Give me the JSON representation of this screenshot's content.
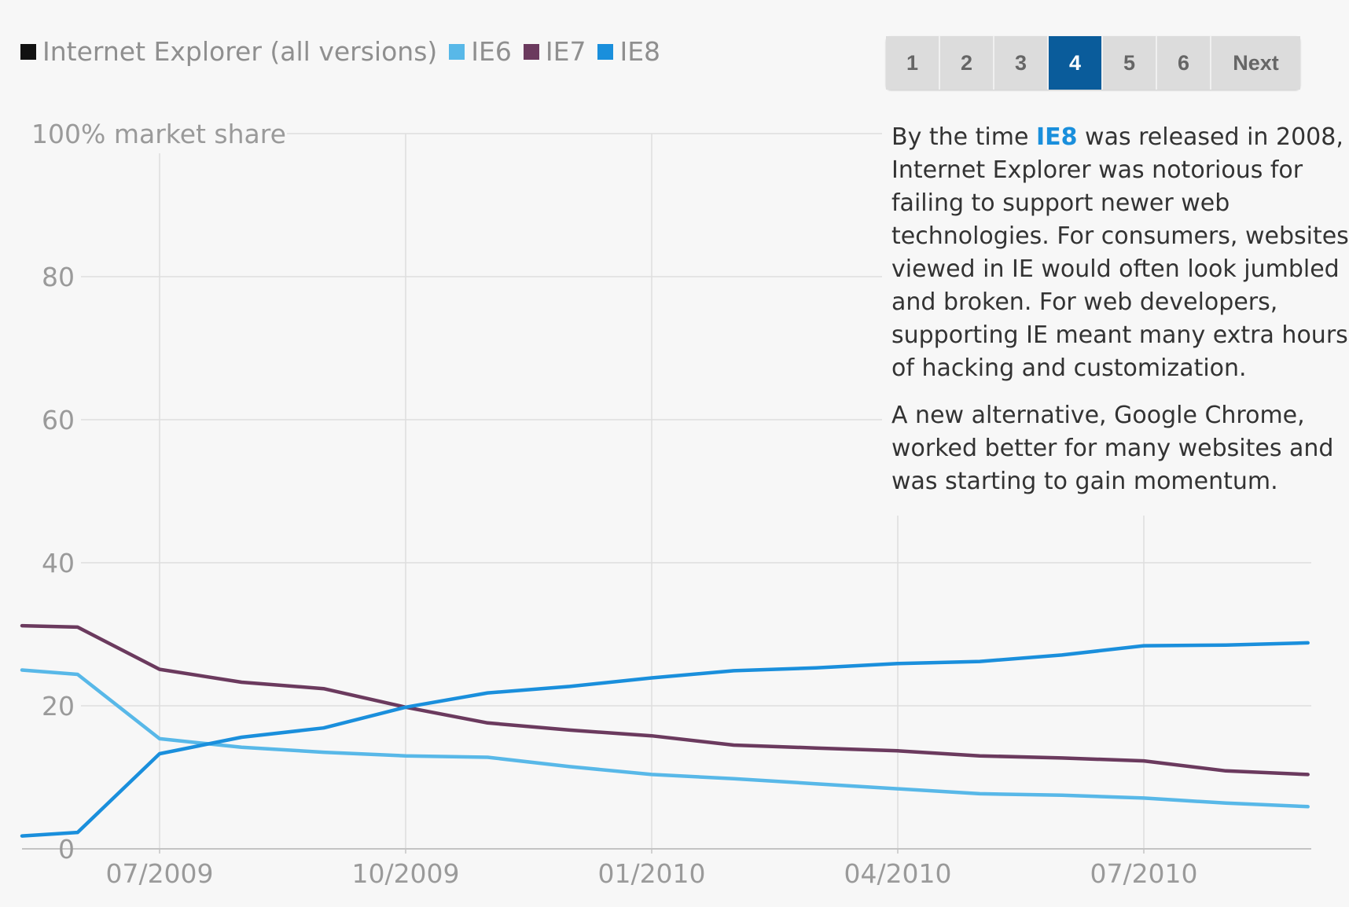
{
  "legend": {
    "items": [
      {
        "label": "Internet Explorer (all versions)",
        "color": "#111111"
      },
      {
        "label": "IE6",
        "color": "#58b8e8"
      },
      {
        "label": "IE7",
        "color": "#6b3a5e"
      },
      {
        "label": "IE8",
        "color": "#1a8fdc"
      }
    ]
  },
  "pager": {
    "pages": [
      "1",
      "2",
      "3",
      "4",
      "5",
      "6"
    ],
    "active": "4",
    "next_label": "Next"
  },
  "annotation": {
    "p1_before": "By the time ",
    "p1_highlight": "IE8",
    "p1_after_lines": [
      " was released in 2008,",
      "Internet Explorer was notorious for",
      "failing to support newer web",
      "technologies. For consumers, websites",
      "viewed in IE would often look jumbled",
      "and broken. For web developers,",
      "supporting IE meant many extra hours",
      "of hacking and customization."
    ],
    "p2_lines": [
      "A new alternative, Google Chrome,",
      "worked better for many websites and",
      "was starting to gain momentum."
    ]
  },
  "chart_data": {
    "type": "line",
    "ylabel_top": "100% market share",
    "ylim": [
      0,
      100
    ],
    "yticks": [
      0,
      20,
      40,
      60,
      80,
      100
    ],
    "ytick_labels": [
      "0",
      "20",
      "40",
      "60",
      "80",
      "100% market share"
    ],
    "x": [
      "2009-04",
      "2009-06",
      "2009-07",
      "2009-08",
      "2009-09",
      "2009-10",
      "2009-11",
      "2009-12",
      "2010-01",
      "2010-02",
      "2010-03",
      "2010-04",
      "2010-05",
      "2010-06",
      "2010-07",
      "2010-08",
      "2010-09"
    ],
    "xticks": [
      "2009-07",
      "2009-10",
      "2010-01",
      "2010-04",
      "2010-07"
    ],
    "xtick_labels": [
      "07/2009",
      "10/2009",
      "01/2010",
      "04/2010",
      "07/2010"
    ],
    "grid": true,
    "legend_position": "top-left",
    "series": [
      {
        "name": "IE6",
        "color": "#58b8e8",
        "values": [
          25.0,
          24.4,
          15.4,
          14.2,
          13.5,
          13.0,
          12.8,
          11.5,
          10.4,
          9.8,
          9.1,
          8.4,
          7.7,
          7.5,
          7.1,
          6.4,
          5.9
        ]
      },
      {
        "name": "IE7",
        "color": "#6b3a5e",
        "values": [
          31.2,
          31.0,
          25.1,
          23.3,
          22.4,
          19.8,
          17.6,
          16.6,
          15.8,
          14.5,
          14.1,
          13.7,
          13.0,
          12.7,
          12.3,
          10.9,
          10.4
        ]
      },
      {
        "name": "IE8",
        "color": "#1a8fdc",
        "values": [
          1.8,
          2.3,
          13.3,
          15.6,
          16.9,
          19.8,
          21.8,
          22.7,
          23.9,
          24.9,
          25.3,
          25.9,
          26.2,
          27.1,
          28.4,
          28.5,
          28.8
        ]
      }
    ]
  }
}
